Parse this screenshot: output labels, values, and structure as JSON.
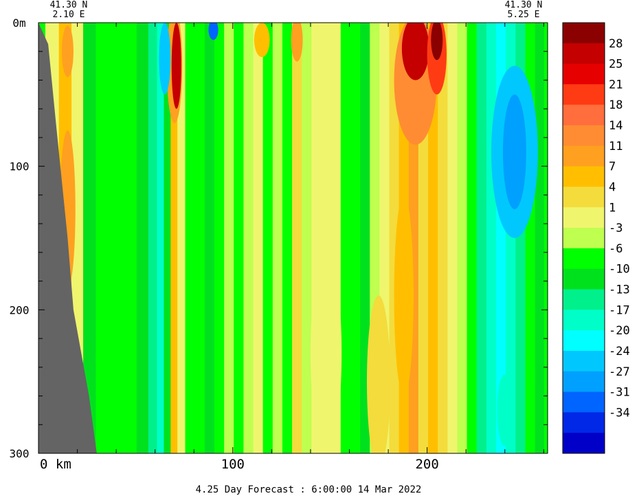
{
  "header": {
    "left": {
      "lat": "41.30 N",
      "lon": "2.10 E"
    },
    "right": {
      "lat": "41.30 N",
      "lon": "5.25 E"
    }
  },
  "footer": {
    "caption": "4.25 Day Forecast :  6:00:00  14 Mar 2022"
  },
  "chart_data": {
    "type": "heatmap",
    "title": "",
    "xlabel": "km",
    "ylabel": "",
    "x_range": [
      0,
      262
    ],
    "y_range": [
      0,
      300
    ],
    "y_inverted": true,
    "x_ticks": [
      {
        "value": 0,
        "label": "0 km"
      },
      {
        "value": 100,
        "label": "100"
      },
      {
        "value": 200,
        "label": "200"
      }
    ],
    "y_ticks": [
      {
        "value": 0,
        "label": "0m"
      },
      {
        "value": 100,
        "label": "100"
      },
      {
        "value": 200,
        "label": "200"
      },
      {
        "value": 300,
        "label": "300"
      }
    ],
    "colorbar": {
      "bins": [
        {
          "color": "#8b0000",
          "label": ""
        },
        {
          "color": "#c40000",
          "label": "28"
        },
        {
          "color": "#e60000",
          "label": "25"
        },
        {
          "color": "#ff3b14",
          "label": "21"
        },
        {
          "color": "#ff6e3c",
          "label": "18"
        },
        {
          "color": "#ff8c32",
          "label": "14"
        },
        {
          "color": "#ffa020",
          "label": "11"
        },
        {
          "color": "#ffbf00",
          "label": "7"
        },
        {
          "color": "#f3dc3c",
          "label": "4"
        },
        {
          "color": "#f0f56e",
          "label": "1"
        },
        {
          "color": "#beff50",
          "label": "-3"
        },
        {
          "color": "#00ff00",
          "label": "-6"
        },
        {
          "color": "#00e11e",
          "label": "-10"
        },
        {
          "color": "#00f08c",
          "label": "-13"
        },
        {
          "color": "#00ffc8",
          "label": "-17"
        },
        {
          "color": "#00ffff",
          "label": "-20"
        },
        {
          "color": "#00c8ff",
          "label": "-24"
        },
        {
          "color": "#00a0ff",
          "label": "-27"
        },
        {
          "color": "#0064ff",
          "label": "-31"
        },
        {
          "color": "#0028e6",
          "label": "-34"
        },
        {
          "color": "#0000c8",
          "label": ""
        }
      ]
    },
    "columns": [
      {
        "x": 7,
        "color": "#f0f56e"
      },
      {
        "x": 14,
        "color": "#ffbf00"
      },
      {
        "x": 20,
        "color": "#f0f56e"
      },
      {
        "x": 26,
        "color": "#00e11e"
      },
      {
        "x": 33,
        "color": "#00ff00"
      },
      {
        "x": 40,
        "color": "#00ff00"
      },
      {
        "x": 47,
        "color": "#00ff00"
      },
      {
        "x": 54,
        "color": "#00e11e"
      },
      {
        "x": 59,
        "color": "#00f08c"
      },
      {
        "x": 63,
        "color": "#00ffc8"
      },
      {
        "x": 66,
        "color": "#00e11e"
      },
      {
        "x": 70,
        "color": "#ffbf00"
      },
      {
        "x": 73,
        "color": "#f0f56e"
      },
      {
        "x": 78,
        "color": "#00ff00"
      },
      {
        "x": 83,
        "color": "#00ff00"
      },
      {
        "x": 88,
        "color": "#00e11e"
      },
      {
        "x": 93,
        "color": "#00ff00"
      },
      {
        "x": 98,
        "color": "#beff50"
      },
      {
        "x": 103,
        "color": "#00ff00"
      },
      {
        "x": 108,
        "color": "#beff50"
      },
      {
        "x": 113,
        "color": "#f0f56e"
      },
      {
        "x": 118,
        "color": "#00ff00"
      },
      {
        "x": 123,
        "color": "#beff50"
      },
      {
        "x": 128,
        "color": "#00ff00"
      },
      {
        "x": 133,
        "color": "#f3dc3c"
      },
      {
        "x": 138,
        "color": "#beff50"
      },
      {
        "x": 143,
        "color": "#f0f56e"
      },
      {
        "x": 148,
        "color": "#f0f56e"
      },
      {
        "x": 153,
        "color": "#f0f56e"
      },
      {
        "x": 158,
        "color": "#00ff00"
      },
      {
        "x": 163,
        "color": "#00ff00"
      },
      {
        "x": 168,
        "color": "#00e11e"
      },
      {
        "x": 173,
        "color": "#beff50"
      },
      {
        "x": 178,
        "color": "#f0f56e"
      },
      {
        "x": 183,
        "color": "#f3dc3c"
      },
      {
        "x": 188,
        "color": "#ffbf00"
      },
      {
        "x": 193,
        "color": "#ffa020"
      },
      {
        "x": 198,
        "color": "#f3dc3c"
      },
      {
        "x": 203,
        "color": "#ffbf00"
      },
      {
        "x": 208,
        "color": "#f3dc3c"
      },
      {
        "x": 213,
        "color": "#f0f56e"
      },
      {
        "x": 218,
        "color": "#beff50"
      },
      {
        "x": 223,
        "color": "#00ff00"
      },
      {
        "x": 228,
        "color": "#00f08c"
      },
      {
        "x": 233,
        "color": "#00ffc8"
      },
      {
        "x": 238,
        "color": "#00ffff"
      },
      {
        "x": 243,
        "color": "#00ffc8"
      },
      {
        "x": 248,
        "color": "#00f08c"
      },
      {
        "x": 253,
        "color": "#00ff00"
      },
      {
        "x": 258,
        "color": "#00e11e"
      }
    ],
    "blobs": [
      {
        "x": 15,
        "y": 130,
        "rx": 4,
        "ry": 55,
        "color": "#ffa020"
      },
      {
        "x": 15,
        "y": 20,
        "rx": 3,
        "ry": 18,
        "color": "#ffa020"
      },
      {
        "x": 70,
        "y": 30,
        "rx": 4,
        "ry": 40,
        "color": "#ffa020"
      },
      {
        "x": 71,
        "y": 30,
        "rx": 2.5,
        "ry": 30,
        "color": "#c40000"
      },
      {
        "x": 65,
        "y": 25,
        "rx": 3,
        "ry": 25,
        "color": "#00c8ff"
      },
      {
        "x": 90,
        "y": 5,
        "rx": 2.5,
        "ry": 7,
        "color": "#0064ff"
      },
      {
        "x": 115,
        "y": 12,
        "rx": 4,
        "ry": 12,
        "color": "#ffbf00"
      },
      {
        "x": 133,
        "y": 12,
        "rx": 3,
        "ry": 15,
        "color": "#ffa020"
      },
      {
        "x": 194,
        "y": 40,
        "rx": 11,
        "ry": 45,
        "color": "#ff8c32"
      },
      {
        "x": 194,
        "y": 18,
        "rx": 7,
        "ry": 22,
        "color": "#c40000"
      },
      {
        "x": 205,
        "y": 22,
        "rx": 5,
        "ry": 28,
        "color": "#ff3b14"
      },
      {
        "x": 205,
        "y": 12,
        "rx": 3,
        "ry": 14,
        "color": "#8b0000"
      },
      {
        "x": 188,
        "y": 190,
        "rx": 5,
        "ry": 70,
        "color": "#ffbf00"
      },
      {
        "x": 245,
        "y": 90,
        "rx": 12,
        "ry": 60,
        "color": "#00c8ff"
      },
      {
        "x": 245,
        "y": 90,
        "rx": 6,
        "ry": 40,
        "color": "#00a0ff"
      },
      {
        "x": 240,
        "y": 270,
        "rx": 4,
        "ry": 25,
        "color": "#00ffc8"
      },
      {
        "x": 148,
        "y": 230,
        "rx": 8,
        "ry": 70,
        "color": "#f0f56e"
      },
      {
        "x": 175,
        "y": 250,
        "rx": 6,
        "ry": 60,
        "color": "#f3dc3c"
      }
    ],
    "land_mask": [
      [
        0,
        0
      ],
      [
        5,
        15
      ],
      [
        9,
        70
      ],
      [
        15,
        150
      ],
      [
        18,
        200
      ],
      [
        26,
        260
      ],
      [
        30,
        300
      ],
      [
        0,
        300
      ]
    ]
  }
}
